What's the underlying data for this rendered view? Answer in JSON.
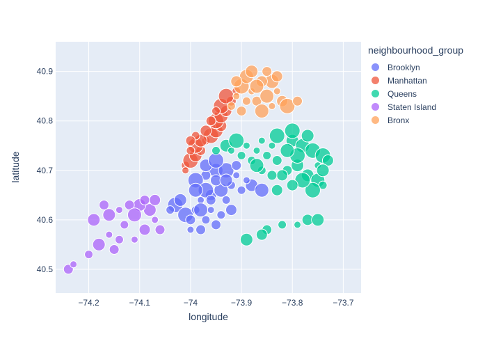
{
  "chart_data": {
    "type": "scatter",
    "title": "",
    "xlabel": "longitude",
    "ylabel": "latitude",
    "xlim": [
      -74.265,
      -73.665
    ],
    "ylim": [
      40.452,
      40.96
    ],
    "xticks": [
      -74.2,
      -74.1,
      -74.0,
      -73.9,
      -73.8,
      -73.7
    ],
    "xtick_labels": [
      "−74.2",
      "−74.1",
      "−74",
      "−73.9",
      "−73.8",
      "−73.7"
    ],
    "yticks": [
      40.5,
      40.6,
      40.7,
      40.8,
      40.9
    ],
    "ytick_labels": [
      "40.5",
      "40.6",
      "40.7",
      "40.8",
      "40.9"
    ],
    "grid": true,
    "legend_title": "neighbourhood_group",
    "legend_position": "right",
    "series": [
      {
        "name": "Brooklyn",
        "color": "#636efa",
        "points": [
          [
            -74.03,
            40.63
          ],
          [
            -74.01,
            40.61
          ],
          [
            -73.99,
            40.62
          ],
          [
            -73.98,
            40.64
          ],
          [
            -73.96,
            40.65
          ],
          [
            -73.94,
            40.66
          ],
          [
            -73.92,
            40.67
          ],
          [
            -73.9,
            40.66
          ],
          [
            -73.88,
            40.67
          ],
          [
            -73.91,
            40.69
          ],
          [
            -73.95,
            40.7
          ],
          [
            -73.97,
            40.69
          ],
          [
            -73.99,
            40.68
          ],
          [
            -73.96,
            40.62
          ],
          [
            -73.94,
            40.61
          ],
          [
            -73.95,
            40.59
          ],
          [
            -73.98,
            40.58
          ],
          [
            -74.0,
            40.6
          ],
          [
            -73.93,
            40.64
          ],
          [
            -73.97,
            40.66
          ],
          [
            -73.95,
            40.68
          ],
          [
            -73.93,
            40.7
          ],
          [
            -73.91,
            40.71
          ],
          [
            -73.89,
            40.68
          ],
          [
            -74.02,
            40.64
          ],
          [
            -73.99,
            40.66
          ],
          [
            -73.97,
            40.71
          ],
          [
            -73.95,
            40.72
          ],
          [
            -74.0,
            40.58
          ],
          [
            -73.92,
            40.62
          ],
          [
            -73.97,
            40.6
          ],
          [
            -74.04,
            40.62
          ],
          [
            -73.86,
            40.66
          ],
          [
            -73.96,
            40.64
          ],
          [
            -73.98,
            40.62
          ],
          [
            -73.93,
            40.68
          ]
        ]
      },
      {
        "name": "Manhattan",
        "color": "#ef553b",
        "points": [
          [
            -74.01,
            40.71
          ],
          [
            -74.0,
            40.72
          ],
          [
            -73.99,
            40.73
          ],
          [
            -73.98,
            40.74
          ],
          [
            -73.99,
            40.75
          ],
          [
            -73.97,
            40.76
          ],
          [
            -73.96,
            40.77
          ],
          [
            -73.95,
            40.78
          ],
          [
            -73.94,
            40.79
          ],
          [
            -73.95,
            40.8
          ],
          [
            -73.94,
            40.81
          ],
          [
            -73.93,
            40.82
          ],
          [
            -73.94,
            40.83
          ],
          [
            -73.92,
            40.84
          ],
          [
            -73.91,
            40.86
          ],
          [
            -74.0,
            40.74
          ],
          [
            -73.98,
            40.76
          ],
          [
            -73.97,
            40.78
          ],
          [
            -73.96,
            40.8
          ],
          [
            -73.93,
            40.85
          ],
          [
            -74.01,
            40.7
          ],
          [
            -73.99,
            40.77
          ],
          [
            -74.0,
            40.76
          ],
          [
            -73.95,
            40.82
          ]
        ]
      },
      {
        "name": "Queens",
        "color": "#00cc96",
        "points": [
          [
            -73.95,
            40.74
          ],
          [
            -73.93,
            40.75
          ],
          [
            -73.91,
            40.76
          ],
          [
            -73.89,
            40.75
          ],
          [
            -73.87,
            40.74
          ],
          [
            -73.85,
            40.73
          ],
          [
            -73.83,
            40.72
          ],
          [
            -73.81,
            40.7
          ],
          [
            -73.79,
            40.71
          ],
          [
            -73.77,
            40.69
          ],
          [
            -73.75,
            40.68
          ],
          [
            -73.74,
            40.67
          ],
          [
            -73.76,
            40.66
          ],
          [
            -73.78,
            40.68
          ],
          [
            -73.8,
            40.67
          ],
          [
            -73.82,
            40.69
          ],
          [
            -73.84,
            40.75
          ],
          [
            -73.86,
            40.76
          ],
          [
            -73.83,
            40.77
          ],
          [
            -73.8,
            40.76
          ],
          [
            -73.78,
            40.75
          ],
          [
            -73.76,
            40.74
          ],
          [
            -73.74,
            40.73
          ],
          [
            -73.73,
            40.72
          ],
          [
            -73.92,
            40.74
          ],
          [
            -73.9,
            40.73
          ],
          [
            -73.88,
            40.72
          ],
          [
            -73.86,
            40.7
          ],
          [
            -73.84,
            40.69
          ],
          [
            -73.79,
            40.73
          ],
          [
            -73.75,
            40.71
          ],
          [
            -73.81,
            40.74
          ],
          [
            -73.87,
            40.71
          ],
          [
            -73.83,
            40.66
          ],
          [
            -73.85,
            40.58
          ],
          [
            -73.82,
            40.59
          ],
          [
            -73.79,
            40.59
          ],
          [
            -73.77,
            40.6
          ],
          [
            -73.75,
            40.6
          ],
          [
            -73.86,
            40.57
          ],
          [
            -73.89,
            40.56
          ],
          [
            -73.8,
            40.78
          ],
          [
            -73.77,
            40.77
          ],
          [
            -73.74,
            40.7
          ]
        ]
      },
      {
        "name": "Staten Island",
        "color": "#ab63fa",
        "points": [
          [
            -74.24,
            40.5
          ],
          [
            -74.23,
            40.51
          ],
          [
            -74.2,
            40.53
          ],
          [
            -74.18,
            40.55
          ],
          [
            -74.16,
            40.57
          ],
          [
            -74.14,
            40.56
          ],
          [
            -74.11,
            40.56
          ],
          [
            -74.09,
            40.58
          ],
          [
            -74.07,
            40.6
          ],
          [
            -74.08,
            40.62
          ],
          [
            -74.1,
            40.63
          ],
          [
            -74.12,
            40.63
          ],
          [
            -74.14,
            40.62
          ],
          [
            -74.16,
            40.61
          ],
          [
            -74.17,
            40.63
          ],
          [
            -74.09,
            40.64
          ],
          [
            -74.07,
            40.64
          ],
          [
            -74.13,
            40.59
          ],
          [
            -74.06,
            40.58
          ],
          [
            -74.19,
            40.6
          ],
          [
            -74.11,
            40.61
          ],
          [
            -74.15,
            40.54
          ]
        ]
      },
      {
        "name": "Bronx",
        "color": "#ffa15a",
        "points": [
          [
            -73.92,
            40.83
          ],
          [
            -73.91,
            40.85
          ],
          [
            -73.9,
            40.87
          ],
          [
            -73.89,
            40.89
          ],
          [
            -73.88,
            40.86
          ],
          [
            -73.87,
            40.84
          ],
          [
            -73.86,
            40.82
          ],
          [
            -73.85,
            40.85
          ],
          [
            -73.84,
            40.88
          ],
          [
            -73.83,
            40.86
          ],
          [
            -73.82,
            40.84
          ],
          [
            -73.84,
            40.83
          ],
          [
            -73.86,
            40.88
          ],
          [
            -73.88,
            40.9
          ],
          [
            -73.9,
            40.82
          ],
          [
            -73.89,
            40.84
          ],
          [
            -73.87,
            40.87
          ],
          [
            -73.85,
            40.9
          ],
          [
            -73.81,
            40.83
          ],
          [
            -73.79,
            40.84
          ],
          [
            -73.83,
            40.89
          ],
          [
            -73.91,
            40.88
          ]
        ]
      }
    ]
  }
}
